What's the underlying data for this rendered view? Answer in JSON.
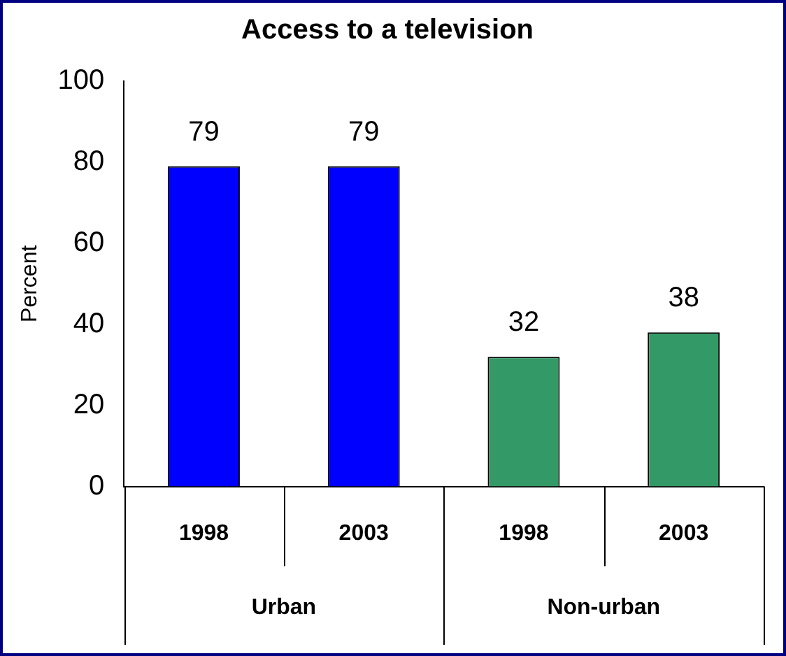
{
  "chart_data": {
    "type": "bar",
    "title": "Access to a television",
    "ylabel": "Percent",
    "categories": [
      "1998",
      "2003",
      "1998",
      "2003"
    ],
    "values": [
      79,
      79,
      32,
      38
    ],
    "colors": [
      "#0000ff",
      "#0000ff",
      "#339966",
      "#339966"
    ],
    "ylim": [
      0,
      100
    ],
    "yticks": [
      0,
      20,
      40,
      60,
      80,
      100
    ],
    "data_labels": true,
    "grid": false,
    "legend": false,
    "annotations": [
      "Urban",
      "Non-urban"
    ]
  }
}
